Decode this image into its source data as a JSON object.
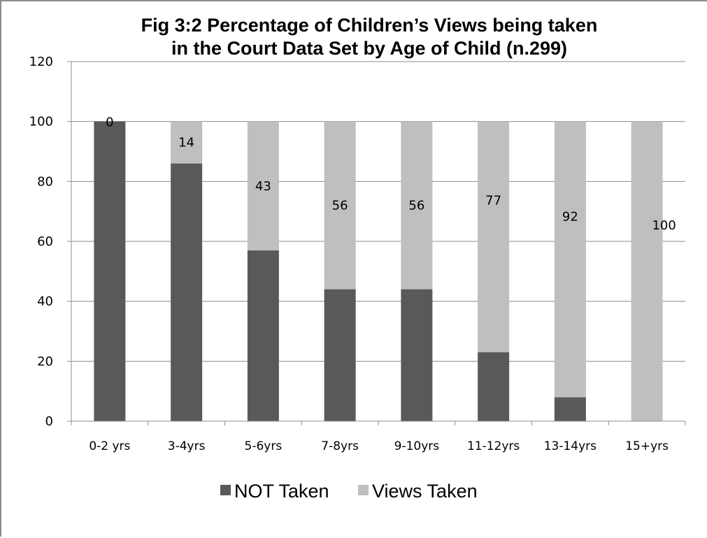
{
  "chart_data": {
    "type": "bar",
    "stacked": true,
    "title_lines": [
      "Fig 3:2 Percentage of Children’s Views being taken",
      "in the Court Data Set by Age of Child (n.299)"
    ],
    "xlabel": "",
    "ylabel": "",
    "ylim": [
      0,
      120
    ],
    "yticks": [
      "0",
      "20",
      "40",
      "60",
      "80",
      "100",
      "120"
    ],
    "grid": true,
    "legend_position": "bottom",
    "categories": [
      "0-2 yrs",
      "3-4yrs",
      "5-6yrs",
      "7-8yrs",
      "9-10yrs",
      "11-12yrs",
      "13-14yrs",
      "15+yrs"
    ],
    "series": [
      {
        "name": "NOT Taken",
        "color": "#595959",
        "values": [
          100,
          86,
          57,
          44,
          44,
          23,
          8,
          0
        ]
      },
      {
        "name": "Views Taken",
        "color": "#bfbfbf",
        "values": [
          0,
          14,
          43,
          56,
          56,
          77,
          92,
          100
        ]
      }
    ],
    "data_labels": [
      "0",
      "14",
      "43",
      "56",
      "56",
      "77",
      "92",
      "100"
    ]
  }
}
